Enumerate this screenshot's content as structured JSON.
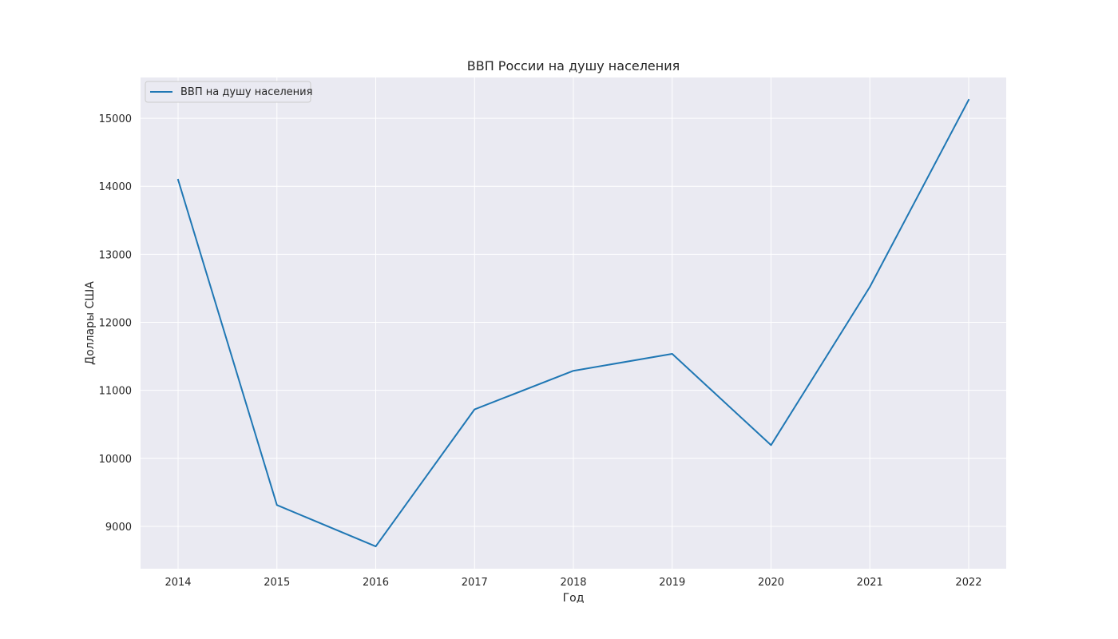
{
  "chart_data": {
    "type": "line",
    "title": "ВВП России на душу населения",
    "xlabel": "Год",
    "ylabel": "Доллары США",
    "x": [
      2014,
      2015,
      2016,
      2017,
      2018,
      2019,
      2020,
      2021,
      2022
    ],
    "series": [
      {
        "name": "ВВП на душу населения",
        "values": [
          14096,
          9313,
          8705,
          10720,
          11287,
          11536,
          10194,
          12520,
          15270
        ],
        "color": "#1f77b4"
      }
    ],
    "x_ticks": [
      2014,
      2015,
      2016,
      2017,
      2018,
      2019,
      2020,
      2021,
      2022
    ],
    "y_ticks": [
      9000,
      10000,
      11000,
      12000,
      13000,
      14000,
      15000
    ],
    "xlim": [
      2013.62,
      2022.38
    ],
    "ylim": [
      8377,
      15600
    ],
    "grid": true,
    "legend_position": "top-left",
    "background_color": "#eaeaf2",
    "grid_color": "#ffffff"
  }
}
